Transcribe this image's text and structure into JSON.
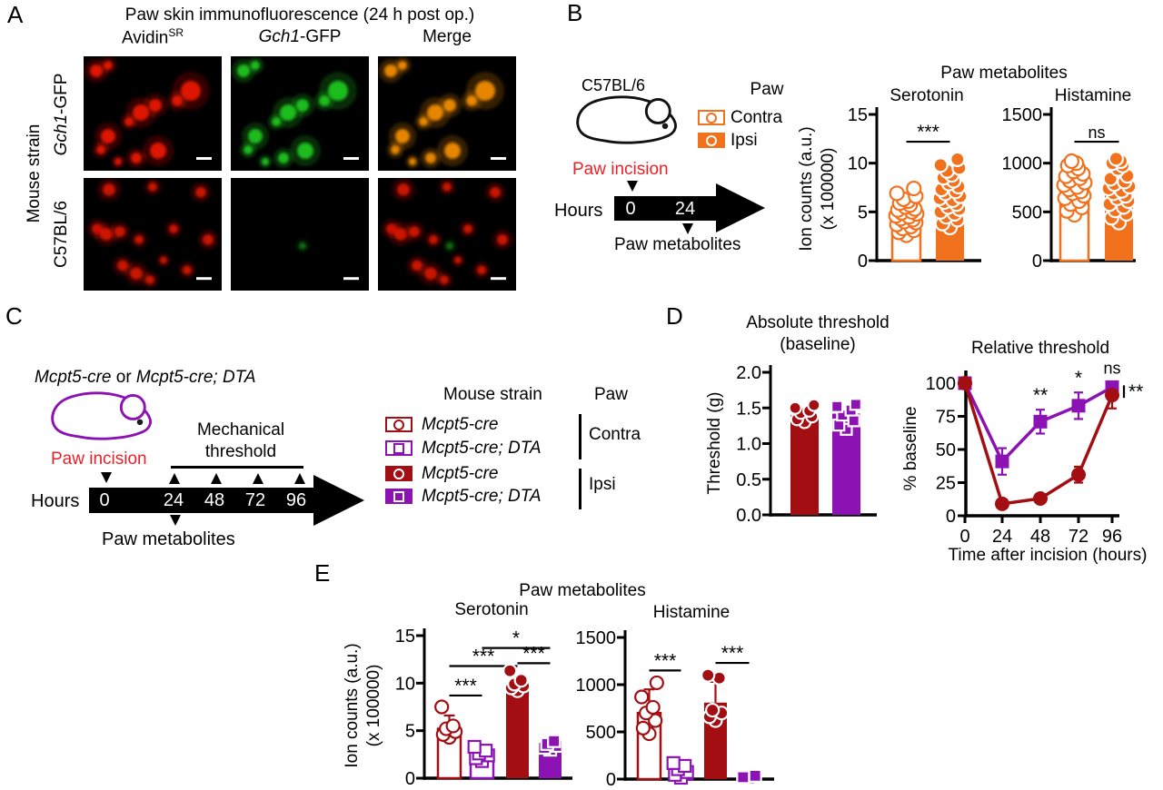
{
  "colors": {
    "orange": "#F2711D",
    "dark_red": "#A30E13",
    "purple": "#8C12B4",
    "incision_red": "#EC2027",
    "fluor_red": "#E81400",
    "fluor_green": "#1EC41E",
    "fluor_merge": "#F08C00",
    "black": "#000000"
  },
  "figure": {
    "panel_a": {
      "label": "A",
      "title": "Paw skin immunofluorescence (24 h post op.)",
      "col1": {
        "base": "Avidin",
        "sup": "SR"
      },
      "col2": {
        "italic": "Gch1",
        "rest": "-GFP"
      },
      "col3": "Merge",
      "row_group": "Mouse strain",
      "row1": {
        "italic": "Gch1",
        "rest": "-GFP"
      },
      "row2": "C57BL/6"
    },
    "panel_b": {
      "label": "B",
      "strain": "C57BL/6",
      "incision": "Paw incision",
      "hours": "Hours",
      "timeline_ticks": [
        "0",
        "24"
      ],
      "metabolites": "Paw metabolites",
      "legend": {
        "title": "Paw",
        "items": [
          {
            "label": "Contra",
            "style": "open-orange",
            "marker": "circle"
          },
          {
            "label": "Ipsi",
            "style": "filled-orange",
            "marker": "circle"
          }
        ]
      },
      "charts_title": "Paw metabolites",
      "ylabel1": "Ion counts (a.u.)",
      "ylabel2": "(x 100000)",
      "serotonin_chart": {
        "type": "bar",
        "title": "Serotonin",
        "ymax": 15,
        "yticks": [
          0,
          5,
          10,
          15
        ],
        "bars": [
          {
            "label": "Contra",
            "style": "open-orange",
            "marker": "circle",
            "value": 4.9,
            "dots": [
              2.6,
              2.9,
              3.1,
              3.3,
              3.5,
              3.7,
              3.9,
              4.0,
              4.2,
              4.3,
              4.5,
              4.6,
              4.8,
              4.9,
              5.0,
              5.2,
              5.3,
              5.5,
              5.7,
              5.9,
              6.1,
              6.3,
              6.6,
              6.9,
              7.4
            ]
          },
          {
            "label": "Ipsi",
            "style": "filled-orange",
            "marker": "circle",
            "value": 6.8,
            "dots": [
              3.4,
              3.8,
              4.2,
              4.5,
              4.8,
              5.0,
              5.3,
              5.5,
              5.8,
              6.0,
              6.2,
              6.4,
              6.6,
              6.9,
              7.1,
              7.3,
              7.6,
              7.9,
              8.2,
              8.5,
              8.8,
              9.2,
              9.5,
              9.8,
              10.4
            ]
          }
        ],
        "sig": [
          {
            "from": 0,
            "to": 1,
            "label": "***",
            "y": 12.2
          }
        ]
      },
      "histamine_chart": {
        "type": "bar",
        "title": "Histamine",
        "ymax": 1500,
        "yticks": [
          0,
          500,
          1000,
          1500
        ],
        "bars": [
          {
            "label": "Contra",
            "style": "open-orange",
            "marker": "circle",
            "value": 790,
            "dots": [
              470,
              510,
              545,
              580,
              610,
              640,
              665,
              690,
              710,
              730,
              755,
              775,
              800,
              820,
              845,
              865,
              890,
              915,
              945,
              975,
              1000,
              1020
            ]
          },
          {
            "label": "Ipsi",
            "style": "filled-orange",
            "marker": "circle",
            "value": 745,
            "dots": [
              390,
              440,
              480,
              515,
              550,
              580,
              610,
              640,
              665,
              690,
              715,
              740,
              760,
              785,
              810,
              840,
              870,
              940,
              975,
              1000,
              1020,
              1045
            ]
          }
        ],
        "sig": [
          {
            "from": 0,
            "to": 1,
            "label": "ns",
            "y": 1220
          }
        ]
      }
    },
    "panel_c": {
      "label": "C",
      "title": {
        "gene1": "Mcpt5-cre",
        "mid": " or ",
        "gene2": "Mcpt5-cre; DTA"
      },
      "incision": "Paw incision",
      "mech1": "Mechanical",
      "mech2": "threshold",
      "hours": "Hours",
      "timeline_ticks": [
        "0",
        "24",
        "48",
        "72",
        "96"
      ],
      "metabolites": "Paw metabolites",
      "legend": {
        "strain_header": "Mouse strain",
        "paw_header": "Paw",
        "items": [
          {
            "label": "Mcpt5-cre",
            "style": "open-red",
            "marker": "circle"
          },
          {
            "label": "Mcpt5-cre; DTA",
            "style": "open-purple",
            "marker": "square"
          },
          {
            "label": "Mcpt5-cre",
            "style": "filled-red",
            "marker": "circle"
          },
          {
            "label": "Mcpt5-cre; DTA",
            "style": "filled-purple",
            "marker": "square"
          }
        ],
        "groups": [
          "Contra",
          "Ipsi"
        ]
      }
    },
    "panel_d": {
      "label": "D",
      "abs_title1": "Absolute threshold",
      "abs_title2": "(baseline)",
      "abs_ylabel": "Threshold (g)",
      "absolute_chart": {
        "type": "bar",
        "ymax": 2,
        "yticks": [
          0,
          0.5,
          1,
          1.5,
          2
        ],
        "tick_decimals": 1,
        "bars": [
          {
            "label": "Mcpt5-cre",
            "style": "filled-red",
            "marker": "circle",
            "value": 1.4,
            "dots": [
              1.3,
              1.34,
              1.38,
              1.43,
              1.46,
              1.5,
              1.54
            ]
          },
          {
            "label": "Mcpt5-cre; DTA",
            "style": "filled-purple",
            "marker": "square",
            "value": 1.42,
            "dots": [
              1.2,
              1.26,
              1.32,
              1.4,
              1.47,
              1.52,
              1.55
            ]
          }
        ],
        "sig": []
      },
      "rel_title": "Relative threshold",
      "rel_ylabel": "% baseline",
      "rel_xlabel": "Time after incision (hours)",
      "relative_chart": {
        "type": "line",
        "ymax": 100,
        "yticks": [
          0,
          25,
          50,
          75,
          100
        ],
        "x": [
          0,
          24,
          48,
          72,
          96
        ],
        "xticks": [
          "0",
          "24",
          "48",
          "72",
          "96"
        ],
        "series": [
          {
            "name": "Mcpt5-cre; DTA",
            "color_key": "purple",
            "marker": "square",
            "values": [
              100,
              41,
              71,
              83,
              97
            ],
            "err": [
              2,
              10,
              9,
              10,
              4
            ]
          },
          {
            "name": "Mcpt5-cre",
            "color_key": "dark_red",
            "marker": "circle",
            "values": [
              100,
              9,
              13,
              31,
              91
            ],
            "err": [
              2,
              3,
              3,
              6,
              10
            ]
          }
        ],
        "annotations": [
          {
            "xi": 2,
            "label": "**"
          },
          {
            "xi": 3,
            "label": "*"
          },
          {
            "xi": 4,
            "label": "ns"
          }
        ],
        "right_sig": "**"
      }
    },
    "panel_e": {
      "label": "E",
      "title": "Paw metabolites",
      "sero_title": "Serotonin",
      "hist_title": "Histamine",
      "ylabel1": "Ion counts (a.u.)",
      "ylabel2": "(x 100000)",
      "serotonin_chart": {
        "type": "bar",
        "ymax": 15,
        "yticks": [
          0,
          5,
          10,
          15
        ],
        "bars": [
          {
            "label": "Mcpt5-cre Contra",
            "style": "open-red",
            "marker": "circle",
            "value": 5.2,
            "err": 6.6,
            "dots": [
              4.3,
              4.6,
              4.9,
              5.2,
              5.5,
              7.5
            ]
          },
          {
            "label": "Mcpt5-cre; DTA Contra",
            "style": "open-purple",
            "marker": "square",
            "value": 2.4,
            "err": 3.3,
            "dots": [
              1.8,
              2.1,
              2.4,
              2.6,
              2.9,
              3.3
            ]
          },
          {
            "label": "Mcpt5-cre Ipsi",
            "style": "filled-red",
            "marker": "circle",
            "value": 9.3,
            "err": 10.6,
            "dots": [
              9.2,
              9.5,
              9.7,
              9.9,
              10.3,
              11.3
            ]
          },
          {
            "label": "Mcpt5-cre; DTA Ipsi",
            "style": "filled-purple",
            "marker": "square",
            "value": 3.4,
            "err": 4.0,
            "dots": [
              3.0,
              3.2,
              3.4,
              3.6,
              3.9
            ]
          }
        ],
        "sig": [
          {
            "from": 0,
            "to": 1,
            "label": "***",
            "y": 8.7
          },
          {
            "from": 0,
            "to": 2,
            "label": "***",
            "y": 11.8
          },
          {
            "from": 2,
            "to": 3,
            "label": "***",
            "y": 12.1
          },
          {
            "from": 1,
            "to": 3,
            "label": "*",
            "y": 13.7
          }
        ]
      },
      "histamine_chart": {
        "type": "bar",
        "ymax": 1500,
        "yticks": [
          0,
          500,
          1000,
          1500
        ],
        "bars": [
          {
            "label": "Mcpt5-cre Contra",
            "style": "open-red",
            "marker": "circle",
            "value": 700,
            "err": 950,
            "dots": [
              480,
              540,
              620,
              700,
              760,
              870,
              1020
            ]
          },
          {
            "label": "Mcpt5-cre; DTA Contra",
            "style": "open-purple",
            "marker": "square",
            "value": 90,
            "err": 175,
            "dots": [
              15,
              45,
              75,
              105,
              140,
              170
            ]
          },
          {
            "label": "Mcpt5-cre Ipsi",
            "style": "filled-red",
            "marker": "circle",
            "value": 810,
            "err": 1030,
            "dots": [
              620,
              660,
              700,
              730,
              1070,
              1100
            ]
          },
          {
            "label": "Mcpt5-cre; DTA Ipsi",
            "style": "filled-purple",
            "marker": "square",
            "value": 25,
            "err": 45,
            "dots": [
              10,
              20,
              35
            ]
          }
        ],
        "sig": [
          {
            "from": 0,
            "to": 1,
            "label": "***",
            "y": 1150
          },
          {
            "from": 2,
            "to": 3,
            "label": "***",
            "y": 1230
          }
        ]
      }
    }
  }
}
